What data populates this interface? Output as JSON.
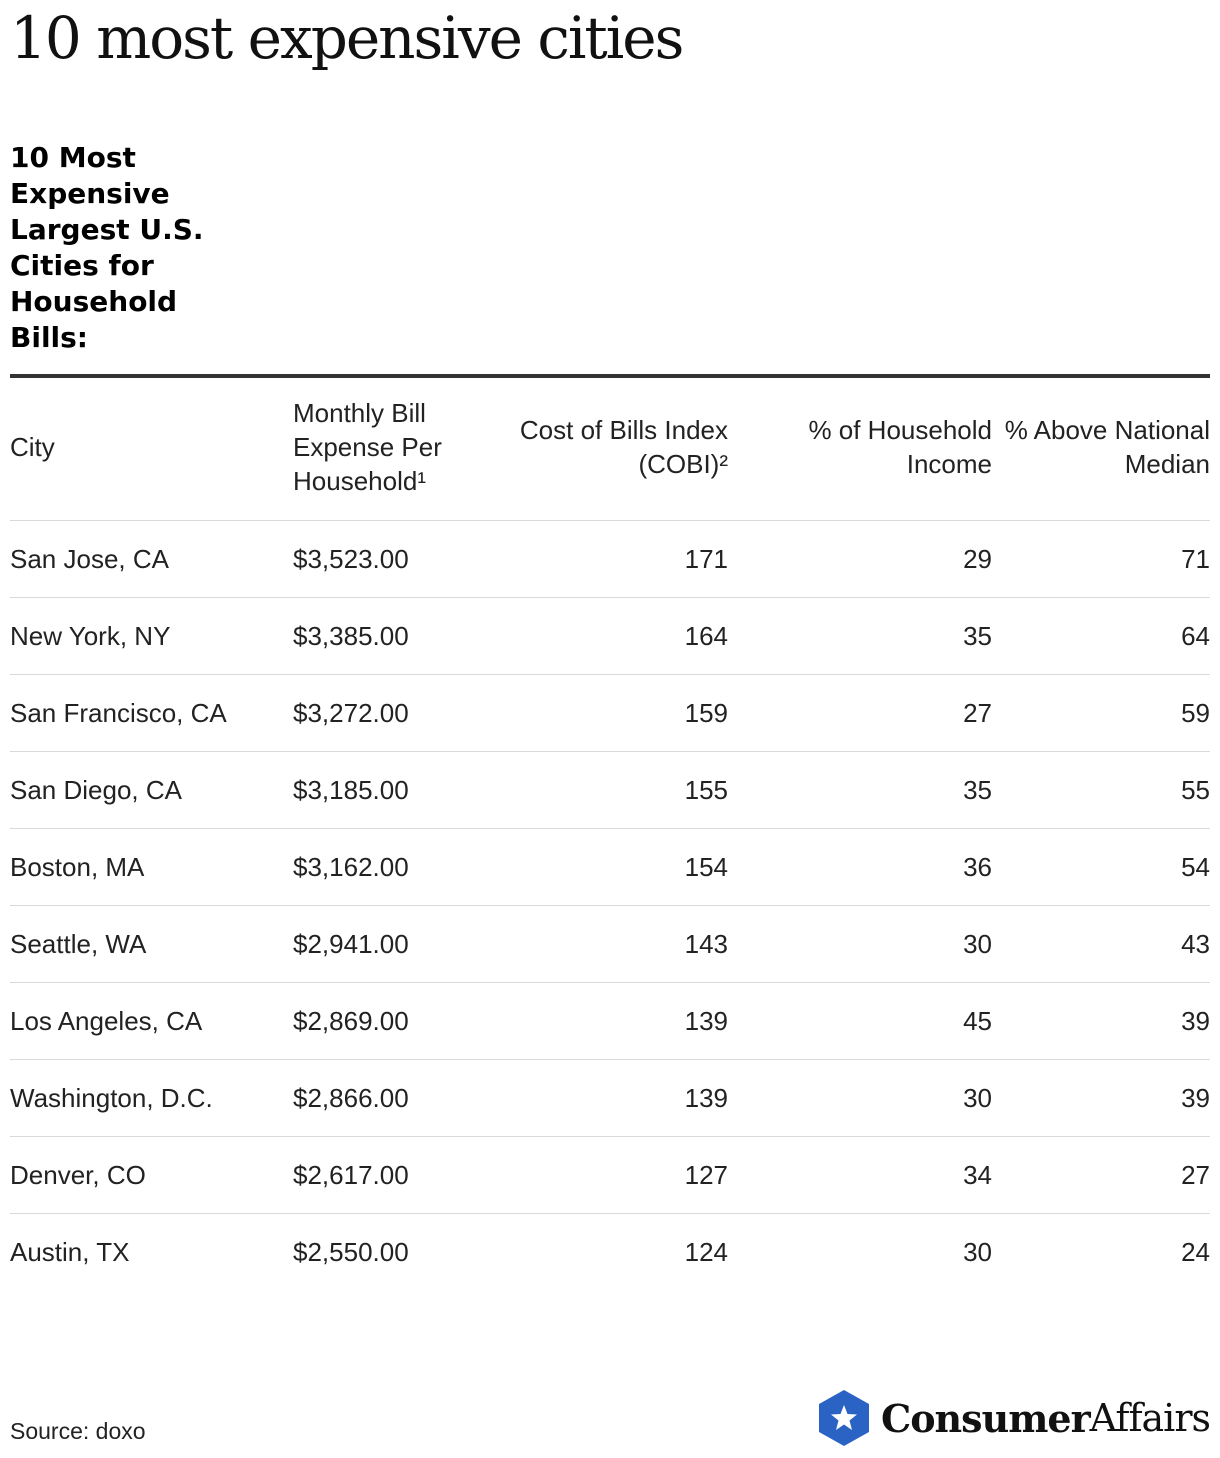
{
  "page_title": "10 most expensive cities",
  "chart_data": {
    "type": "table",
    "title": "10 Most Expensive Largest U.S. Cities for Household Bills:",
    "columns": [
      "City",
      "Monthly Bill Expense Per Household¹",
      "Cost of Bills Index (COBI)²",
      "% of Household Income",
      "% Above National Median"
    ],
    "rows": [
      [
        "San Jose, CA",
        "$3,523.00",
        "171",
        "29",
        "71"
      ],
      [
        "New York, NY",
        "$3,385.00",
        "164",
        "35",
        "64"
      ],
      [
        "San Francisco, CA",
        "$3,272.00",
        "159",
        "27",
        "59"
      ],
      [
        "San Diego, CA",
        "$3,185.00",
        "155",
        "35",
        "55"
      ],
      [
        "Boston, MA",
        "$3,162.00",
        "154",
        "36",
        "54"
      ],
      [
        "Seattle, WA",
        "$2,941.00",
        "143",
        "30",
        "43"
      ],
      [
        "Los Angeles, CA",
        "$2,869.00",
        "139",
        "45",
        "39"
      ],
      [
        "Washington, D.C.",
        "$2,866.00",
        "139",
        "30",
        "39"
      ],
      [
        "Denver, CO",
        "$2,617.00",
        "127",
        "34",
        "27"
      ],
      [
        "Austin, TX",
        "$2,550.00",
        "124",
        "30",
        "24"
      ]
    ]
  },
  "source": "Source: doxo",
  "brand": {
    "name_bold": "Consumer",
    "name_regular": "Affairs",
    "icon": "star-shield-icon",
    "color": "#2b63c4"
  }
}
